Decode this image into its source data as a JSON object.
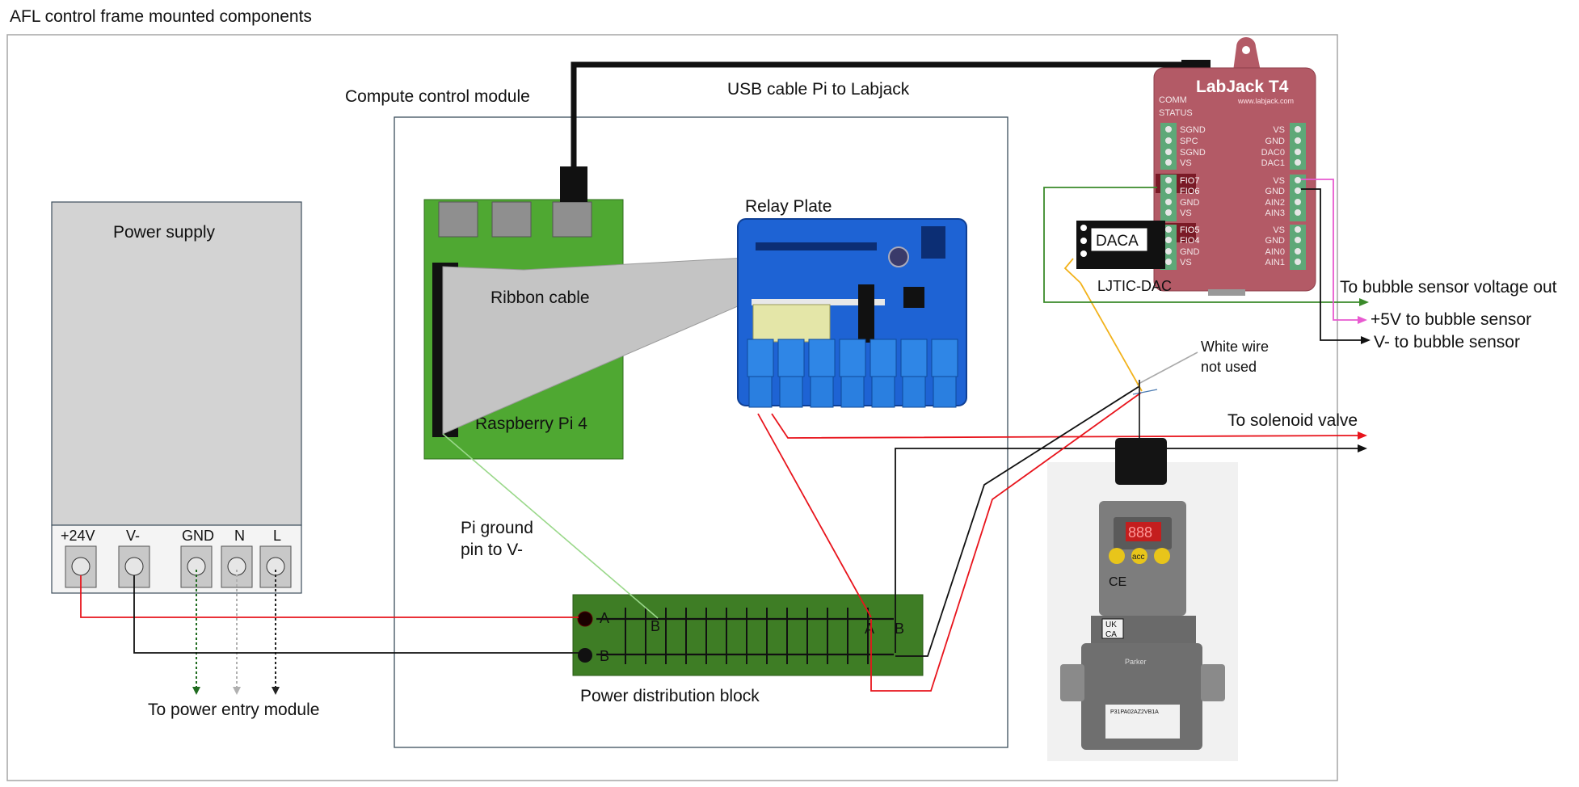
{
  "frame_title": "AFL control frame mounted components",
  "compute_module_label": "Compute control module",
  "usb_label": "USB cable Pi to Labjack",
  "power_supply": {
    "title": "Power supply",
    "terminals": [
      "+24V",
      "V-",
      "GND",
      "N",
      "L"
    ]
  },
  "raspberry_pi_label": "Raspberry Pi 4",
  "ribbon_label": "Ribbon cable",
  "relay_label": "Relay Plate",
  "pi_ground_label_1": "Pi ground",
  "pi_ground_label_2": "pin to V-",
  "power_dist_label": "Power distribution block",
  "power_dist_rows": [
    "A",
    "B"
  ],
  "power_dist_markers": [
    "B",
    "A",
    "B"
  ],
  "power_entry_label": "To power entry module",
  "labjack": {
    "brand": "LabJack T4",
    "url": "www.labjack.com",
    "comm": "COMM",
    "status": "STATUS",
    "left_pins": [
      "SGND",
      "SPC",
      "SGND",
      "VS",
      "FIO7",
      "FIO6",
      "GND",
      "VS",
      "FIO5",
      "FIO4",
      "GND",
      "VS"
    ],
    "right_pins": [
      "VS",
      "GND",
      "DAC0",
      "DAC1",
      "VS",
      "GND",
      "AIN2",
      "AIN3",
      "VS",
      "GND",
      "AIN0",
      "AIN1"
    ]
  },
  "daca_label": "DACA",
  "ljtic_label": "LJTIC-DAC",
  "bubble_voltage_label": "To bubble sensor voltage out",
  "bubble_5v_label": "+5V to bubble sensor",
  "bubble_vminus_label": "V- to bubble sensor",
  "white_wire_label_1": "White wire",
  "white_wire_label_2": "not used",
  "solenoid_label": "To solenoid valve",
  "valve": {
    "display": "888",
    "acc": "acc",
    "ce": "CE",
    "ukca_1": "UK",
    "ukca_2": "CA",
    "brand": "Parker",
    "model": "P31PA02AZ2VB1A"
  },
  "colors": {
    "wire_red": "#e8141c",
    "wire_black": "#111111",
    "wire_green": "#3a8a2a",
    "wire_pink": "#e85ad0",
    "wire_yellow": "#f2b21b",
    "pi_green": "#4fa832",
    "relay_blue": "#1e63d4",
    "labjack_red": "#b35a66",
    "power_block_green": "#3e7d25"
  }
}
